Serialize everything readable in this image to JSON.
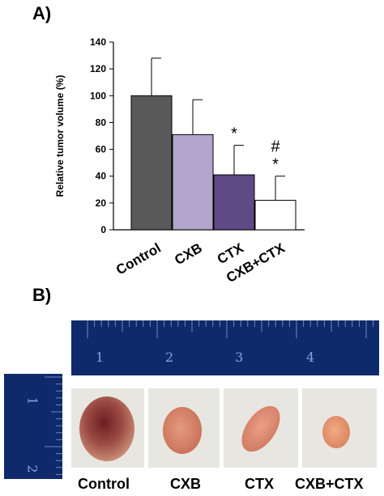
{
  "panel_a_label": "A)",
  "panel_b_label": "B)",
  "chart_data": {
    "type": "bar",
    "ylabel": "Relative tumor volume (%)",
    "xlabel": "",
    "ylim": [
      0,
      140
    ],
    "yticks": [
      0,
      20,
      40,
      60,
      80,
      100,
      120,
      140
    ],
    "categories": [
      "Control",
      "CXB",
      "CTX",
      "CXB+CTX"
    ],
    "values": [
      100,
      71,
      41,
      22
    ],
    "errors": [
      28,
      26,
      22,
      18
    ],
    "colors": [
      "#595959",
      "#b3a5cc",
      "#5f4a85",
      "#ffffff"
    ],
    "annotations": [
      {
        "category": "CTX",
        "marks": [
          "*"
        ]
      },
      {
        "category": "CXB+CTX",
        "marks": [
          "#",
          "*"
        ]
      }
    ],
    "grid": false,
    "legend": "none"
  },
  "photo": {
    "ruler_horizontal_numbers": [
      "1",
      "2",
      "3",
      "4"
    ],
    "ruler_vertical_numbers": [
      "1",
      "2"
    ],
    "labels": [
      "Control",
      "CXB",
      "CTX",
      "CXB+CTX"
    ]
  }
}
